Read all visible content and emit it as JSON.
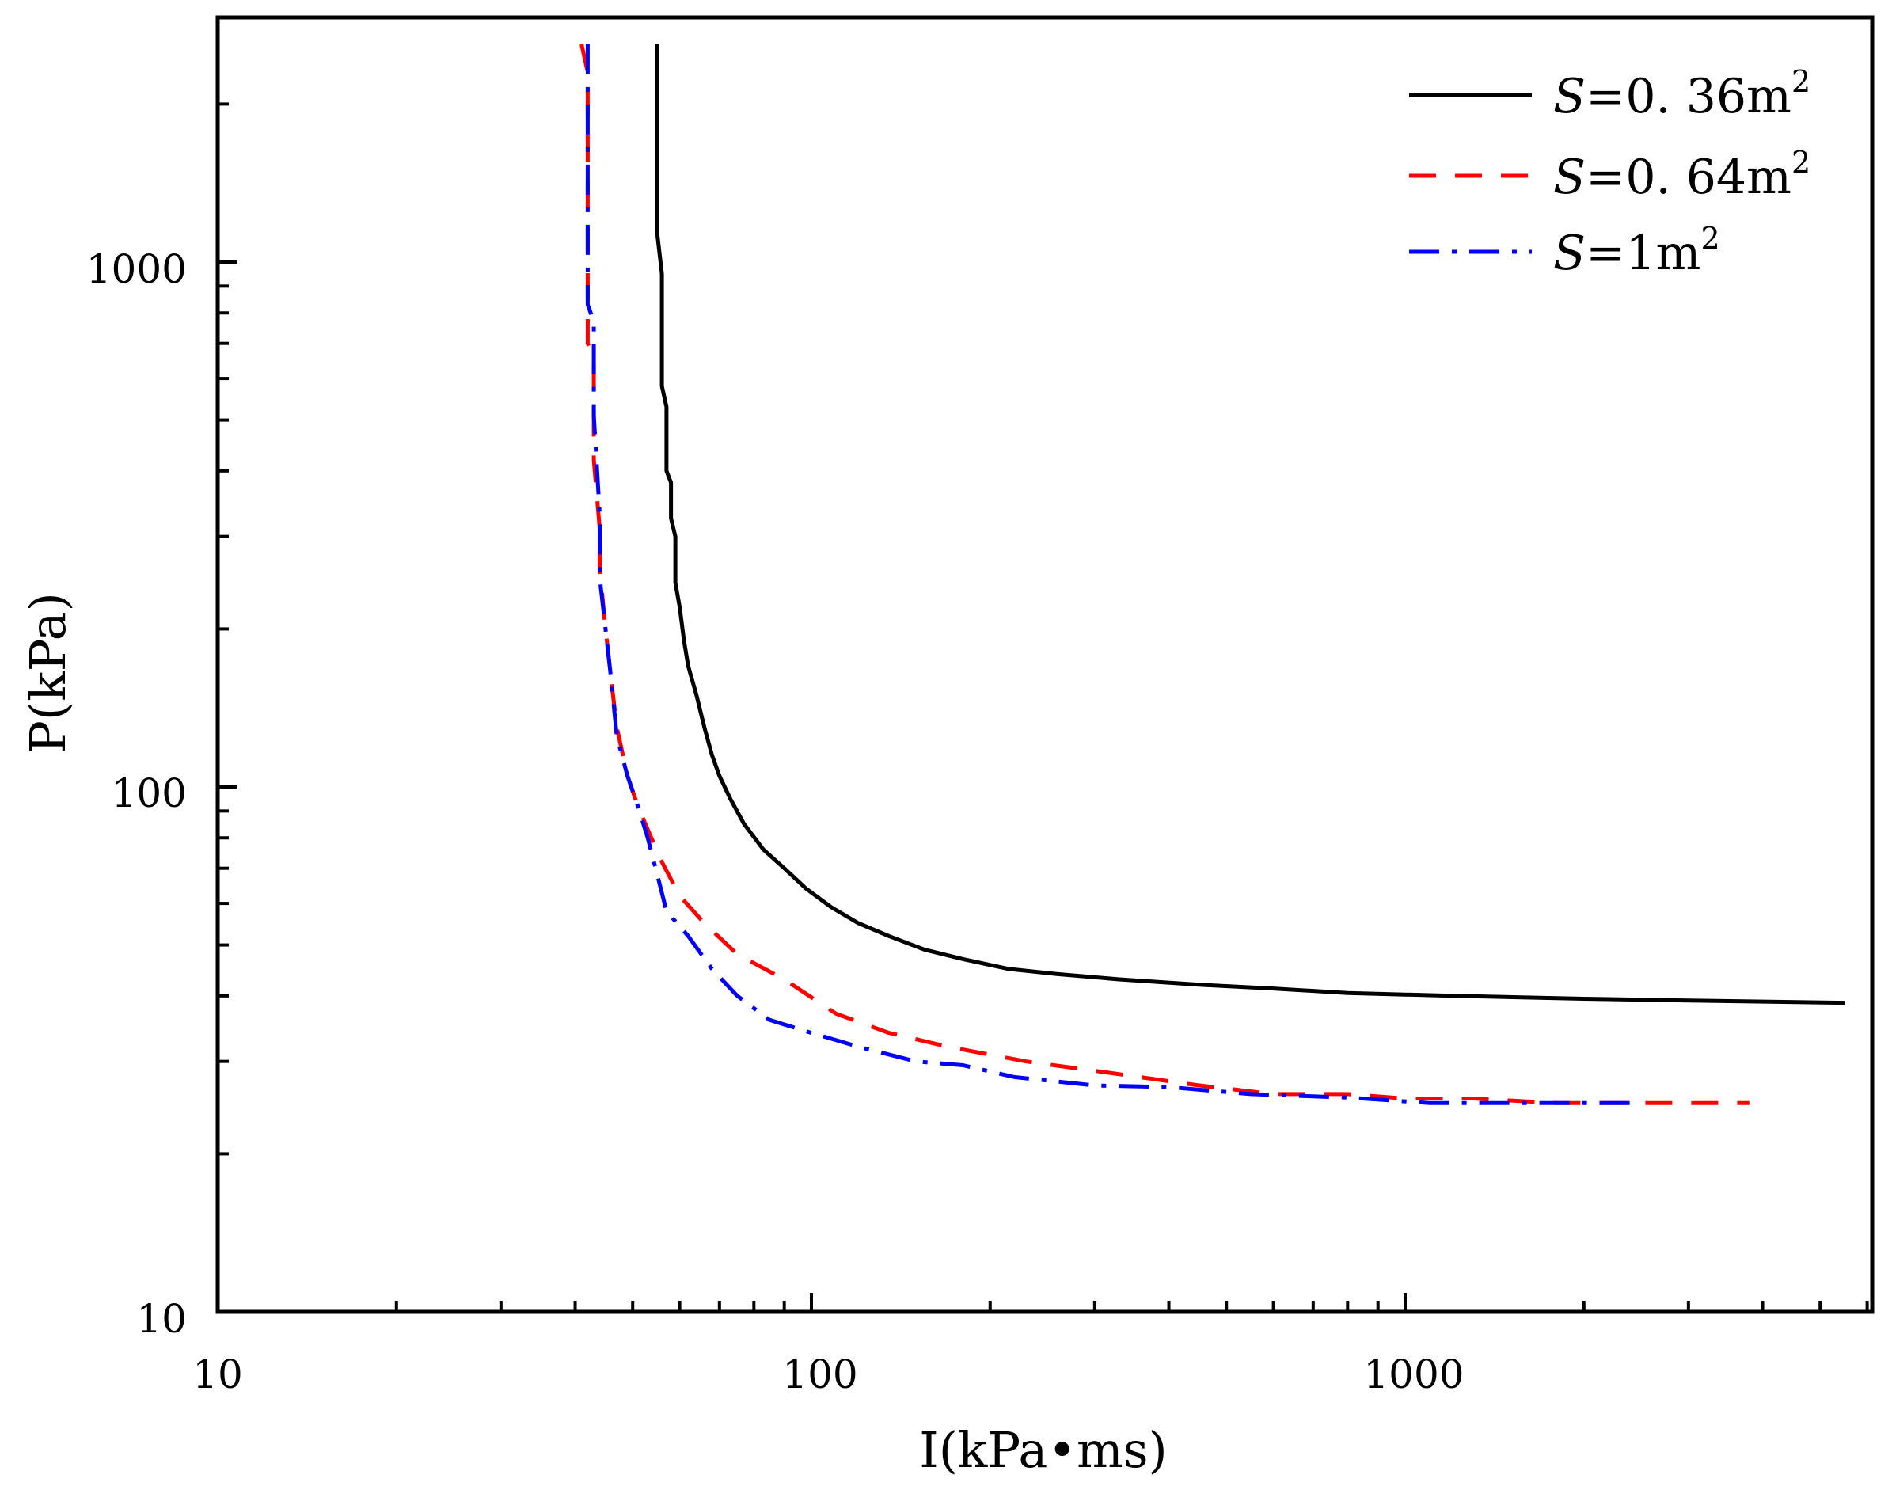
{
  "chart_data": {
    "type": "line",
    "title": "",
    "xlabel": "I(kPa•ms)",
    "ylabel": "P(kPa)",
    "xscale": "log",
    "yscale": "log",
    "xlim": [
      10,
      6000
    ],
    "ylim": [
      10,
      2600
    ],
    "x_tick_labels": [
      "10",
      "100",
      "1000"
    ],
    "y_tick_labels": [
      "10",
      "100",
      "1000"
    ],
    "x_tick_values": [
      10,
      100,
      1000
    ],
    "y_tick_values": [
      10,
      100,
      1000
    ],
    "legend_position": "top-right",
    "series": [
      {
        "name": "S=0.36m2",
        "legend_prefix": "S",
        "legend_body": "=0. 36m",
        "legend_sup": "2",
        "color": "#000000",
        "dash": "solid",
        "points": [
          [
            55,
            2600
          ],
          [
            55,
            1130
          ],
          [
            56,
            950
          ],
          [
            56,
            580
          ],
          [
            57,
            530
          ],
          [
            57,
            400
          ],
          [
            58,
            380
          ],
          [
            58,
            325
          ],
          [
            59,
            300
          ],
          [
            59,
            245
          ],
          [
            60,
            220
          ],
          [
            61,
            190
          ],
          [
            62,
            170
          ],
          [
            64,
            150
          ],
          [
            66,
            130
          ],
          [
            68,
            115
          ],
          [
            70,
            105
          ],
          [
            73,
            95
          ],
          [
            77,
            85
          ],
          [
            83,
            76
          ],
          [
            90,
            70
          ],
          [
            98,
            64
          ],
          [
            108,
            59
          ],
          [
            120,
            55
          ],
          [
            135,
            52
          ],
          [
            155,
            49
          ],
          [
            180,
            47
          ],
          [
            215,
            45
          ],
          [
            260,
            44
          ],
          [
            330,
            43
          ],
          [
            450,
            42
          ],
          [
            600,
            41.3
          ],
          [
            800,
            40.5
          ],
          [
            1200,
            40
          ],
          [
            2000,
            39.5
          ],
          [
            3000,
            39.2
          ],
          [
            5500,
            38.8
          ]
        ]
      },
      {
        "name": "S=0.64m2",
        "legend_prefix": "S",
        "legend_body": "=0. 64m",
        "legend_sup": "2",
        "color": "#ff0000",
        "dash": "34,24",
        "points": [
          [
            41,
            2600
          ],
          [
            42,
            2300
          ],
          [
            42,
            1000
          ],
          [
            42,
            700
          ],
          [
            43,
            660
          ],
          [
            43,
            420
          ],
          [
            44,
            310
          ],
          [
            44,
            260
          ],
          [
            45,
            200
          ],
          [
            46,
            160
          ],
          [
            47,
            130
          ],
          [
            49,
            105
          ],
          [
            51,
            92
          ],
          [
            53,
            83
          ],
          [
            56,
            72
          ],
          [
            60,
            62
          ],
          [
            66,
            55
          ],
          [
            75,
            48
          ],
          [
            90,
            43
          ],
          [
            110,
            37
          ],
          [
            135,
            34
          ],
          [
            170,
            32
          ],
          [
            230,
            30
          ],
          [
            320,
            28.5
          ],
          [
            450,
            27
          ],
          [
            600,
            26
          ],
          [
            800,
            26
          ],
          [
            1000,
            25.5
          ],
          [
            1300,
            25.5
          ],
          [
            1800,
            25
          ],
          [
            3800,
            25
          ]
        ]
      },
      {
        "name": "S=1m2",
        "legend_prefix": "S",
        "legend_body": "=1m",
        "legend_sup": "2",
        "color": "#0000ff",
        "dash": "38,16,6,16",
        "points": [
          [
            42,
            2600
          ],
          [
            42,
            830
          ],
          [
            43,
            770
          ],
          [
            43,
            510
          ],
          [
            44,
            330
          ],
          [
            44,
            250
          ],
          [
            45,
            200
          ],
          [
            46,
            160
          ],
          [
            47,
            125
          ],
          [
            49,
            105
          ],
          [
            51,
            92
          ],
          [
            53,
            80
          ],
          [
            55,
            68
          ],
          [
            57,
            58
          ],
          [
            62,
            52
          ],
          [
            68,
            45
          ],
          [
            75,
            40
          ],
          [
            85,
            36
          ],
          [
            100,
            34
          ],
          [
            120,
            32
          ],
          [
            150,
            30
          ],
          [
            180,
            29.5
          ],
          [
            220,
            28
          ],
          [
            300,
            27
          ],
          [
            400,
            26.8
          ],
          [
            550,
            26
          ],
          [
            800,
            25.6
          ],
          [
            1100,
            25
          ],
          [
            2500,
            25
          ]
        ]
      }
    ]
  }
}
